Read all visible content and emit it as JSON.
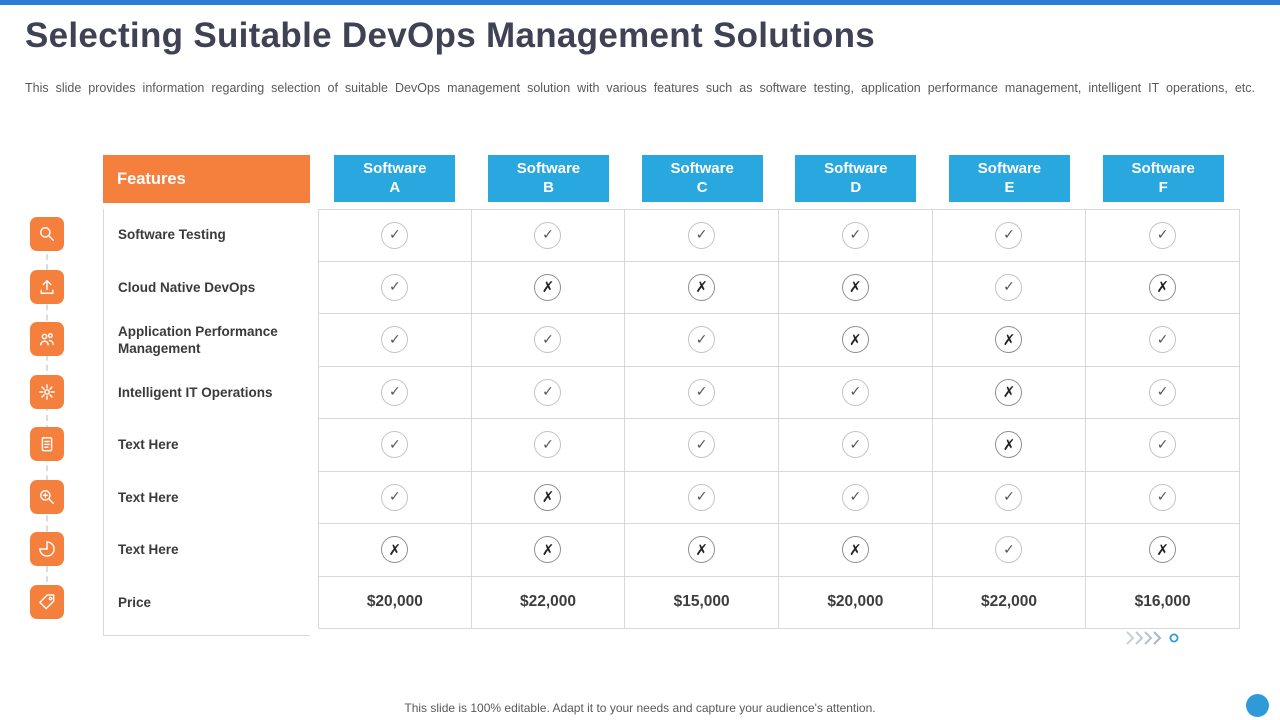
{
  "colors": {
    "orange": "#F5803E",
    "blue": "#29A8E0",
    "topbar": "#2D7DD2",
    "dot": "#2E9BD8",
    "border": "#D9D9D9",
    "text": "#3A3A3A",
    "title": "#3F4254",
    "gray": "#595959"
  },
  "title": "Selecting Suitable DevOps Management Solutions",
  "subtitle": "This slide provides information regarding selection of suitable DevOps management solution with various features such as software testing, application performance management, intelligent IT operations, etc.",
  "footer": "This slide is 100% editable. Adapt it to your needs and capture your audience's attention.",
  "icons": [
    "search-icon",
    "upload-icon",
    "team-icon",
    "process-burst-icon",
    "report-icon",
    "zoom-in-icon",
    "pie-chart-icon",
    "price-tag-icon"
  ],
  "table": {
    "features_header": "Features",
    "columns": [
      {
        "line1": "Software",
        "line2": "A"
      },
      {
        "line1": "Software",
        "line2": "B"
      },
      {
        "line1": "Software",
        "line2": "C"
      },
      {
        "line1": "Software",
        "line2": "D"
      },
      {
        "line1": "Software",
        "line2": "E"
      },
      {
        "line1": "Software",
        "line2": "F"
      }
    ],
    "rows": [
      {
        "label": "Software Testing",
        "cells": [
          "yes",
          "yes",
          "yes",
          "yes",
          "yes",
          "yes"
        ]
      },
      {
        "label": "Cloud Native DevOps",
        "cells": [
          "yes",
          "no",
          "no",
          "no",
          "yes",
          "no"
        ]
      },
      {
        "label": "Application Performance Management",
        "cells": [
          "yes",
          "yes",
          "yes",
          "no",
          "no",
          "yes"
        ]
      },
      {
        "label": "Intelligent IT Operations",
        "cells": [
          "yes",
          "yes",
          "yes",
          "yes",
          "no",
          "yes"
        ]
      },
      {
        "label": "Text Here",
        "cells": [
          "yes",
          "yes",
          "yes",
          "yes",
          "no",
          "yes"
        ]
      },
      {
        "label": "Text Here",
        "cells": [
          "yes",
          "no",
          "yes",
          "yes",
          "yes",
          "yes"
        ]
      },
      {
        "label": "Text Here",
        "cells": [
          "no",
          "no",
          "no",
          "no",
          "yes",
          "no"
        ]
      }
    ],
    "price_row": {
      "label": "Price",
      "values": [
        "$20,000",
        "$22,000",
        "$15,000",
        "$20,000",
        "$22,000",
        "$16,000"
      ]
    }
  }
}
